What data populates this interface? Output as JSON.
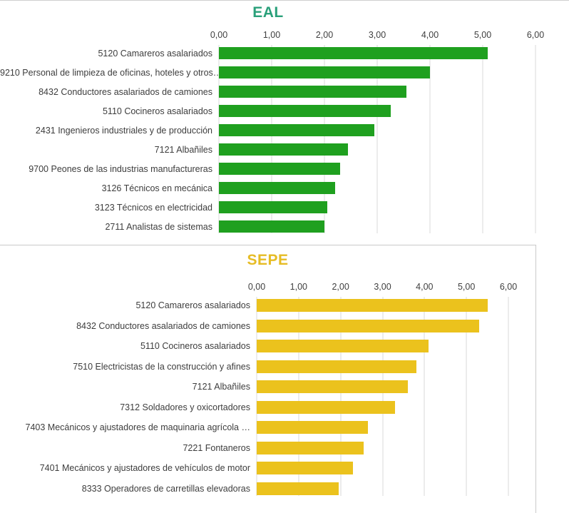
{
  "chart_data": [
    {
      "type": "bar",
      "orientation": "horizontal",
      "title": "EAL",
      "title_color": "#2aa07a",
      "bar_color": "#1fa01f",
      "gridline_color": "#d9d9d9",
      "grid": true,
      "legend_position": "none",
      "xlim": [
        0,
        6
      ],
      "x_ticks": [
        "0,00",
        "1,00",
        "2,00",
        "3,00",
        "4,00",
        "5,00",
        "6,00"
      ],
      "categories": [
        "5120 Camareros asalariados",
        "9210 Personal de limpieza de oficinas, hoteles y otros…",
        "8432 Conductores asalariados de camiones",
        "5110 Cocineros asalariados",
        "2431 Ingenieros industriales y de producción",
        "7121 Albañiles",
        "9700 Peones de las industrias manufactureras",
        "3126 Técnicos en mecánica",
        "3123 Técnicos en electricidad",
        "2711 Analistas de sistemas"
      ],
      "values": [
        5.1,
        4.0,
        3.55,
        3.25,
        2.95,
        2.45,
        2.3,
        2.2,
        2.05,
        2.0
      ]
    },
    {
      "type": "bar",
      "orientation": "horizontal",
      "title": "SEPE",
      "title_color": "#e6bc25",
      "bar_color": "#ebc21d",
      "gridline_color": "#d9d9d9",
      "grid": true,
      "legend_position": "none",
      "xlim": [
        0,
        6
      ],
      "x_ticks": [
        "0,00",
        "1,00",
        "2,00",
        "3,00",
        "4,00",
        "5,00",
        "6,00"
      ],
      "categories": [
        "5120 Camareros asalariados",
        "8432 Conductores asalariados de camiones",
        "5110 Cocineros asalariados",
        "7510 Electricistas de la construcción y afines",
        "7121 Albañiles",
        "7312 Soldadores y oxicortadores",
        "7403 Mecánicos y ajustadores de maquinaria agrícola …",
        "7221 Fontaneros",
        "7401 Mecánicos y ajustadores de vehículos de motor",
        "8333 Operadores de carretillas elevadoras"
      ],
      "values": [
        5.5,
        5.3,
        4.1,
        3.8,
        3.6,
        3.3,
        2.65,
        2.55,
        2.3,
        1.95
      ]
    }
  ]
}
